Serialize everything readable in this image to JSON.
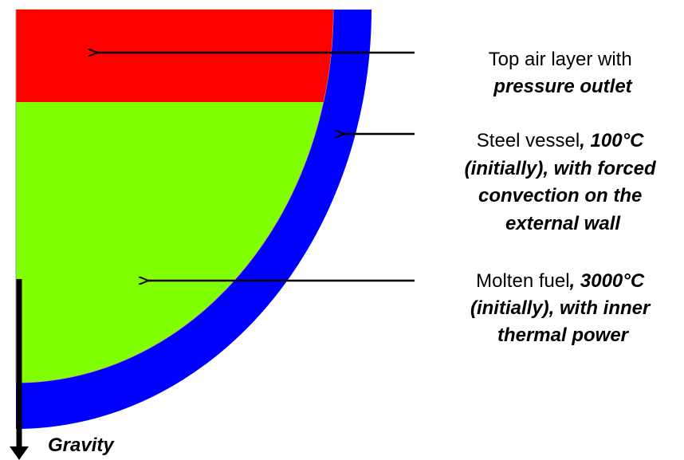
{
  "labels": {
    "air": {
      "line1": "Top air layer with",
      "line2": "pressure outlet"
    },
    "vessel": {
      "line1a": "Steel vessel",
      "line1b": ", 100°C",
      "line2": "(initially), with forced",
      "line3": "convection on the",
      "line4": "external wall"
    },
    "fuel": {
      "line1a": "Molten fuel",
      "line1b": ", 3000°C",
      "line2": "(initially), with inner",
      "line3": "thermal power"
    },
    "gravity": "Gravity"
  }
}
